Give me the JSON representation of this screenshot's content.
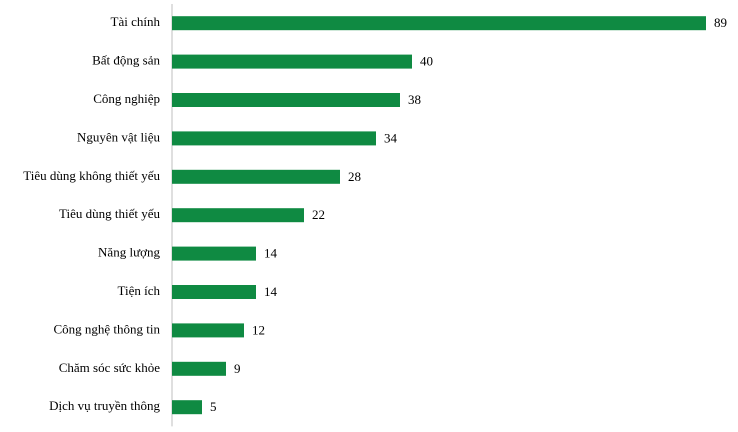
{
  "chart_data": {
    "type": "bar",
    "orientation": "horizontal",
    "categories": [
      "Tài chính",
      "Bất động sản",
      "Công nghiệp",
      "Nguyên vật liệu",
      "Tiêu dùng không thiết yếu",
      "Tiêu dùng thiết yếu",
      "Năng lượng",
      "Tiện ích",
      "Công nghệ thông tin",
      "Chăm sóc sức khỏe",
      "Dịch vụ truyền thông"
    ],
    "values": [
      89,
      40,
      38,
      34,
      28,
      22,
      14,
      14,
      12,
      9,
      5
    ],
    "color": "#0f8a42"
  }
}
